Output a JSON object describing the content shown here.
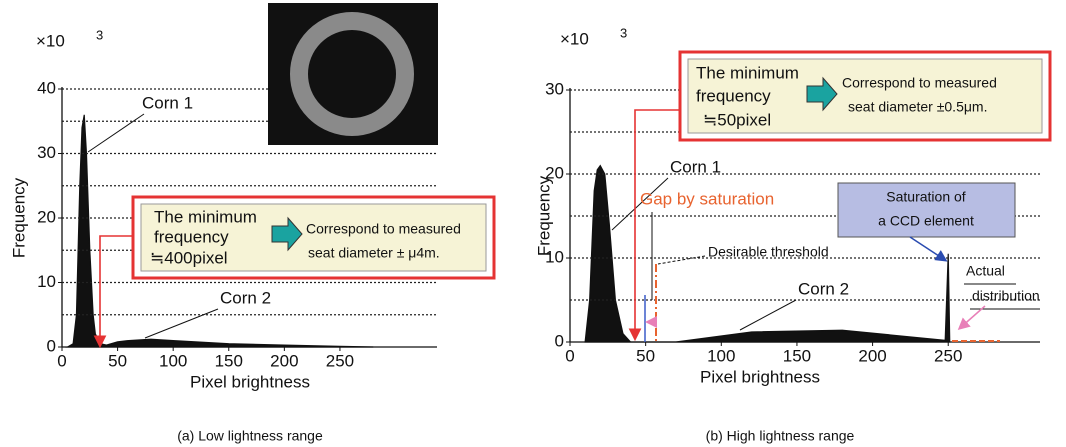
{
  "chart_data": [
    {
      "type": "area",
      "caption": "(a) Low lightness range",
      "y_unit": "×10",
      "y_unit_exp": "3",
      "x_label": "Pixel brightness",
      "y_label": "Frequency",
      "color": "#111111",
      "x": [
        5,
        10,
        13,
        16,
        18,
        20,
        22,
        25,
        28,
        30,
        35,
        40,
        50,
        60,
        80,
        100,
        150,
        200,
        250,
        280
      ],
      "values": [
        0,
        0.5,
        5,
        25,
        34,
        36,
        30,
        15,
        5,
        2,
        0.5,
        0.3,
        0.8,
        1,
        1.2,
        1,
        0.5,
        0.3,
        0.1,
        0
      ],
      "xlim": [
        0,
        340
      ],
      "ylim": [
        0,
        40
      ],
      "xticks": [
        0,
        50,
        100,
        150,
        200,
        250
      ],
      "yticks": [
        0,
        10,
        20,
        30,
        40
      ],
      "grid_lines": [
        5,
        10,
        15,
        20,
        25,
        30,
        35,
        40
      ],
      "annotations": {
        "corn1": "Corn 1",
        "corn2": "Corn 2"
      },
      "callout": {
        "left": [
          "The minimum",
          "frequency",
          "≒400pixel"
        ],
        "right": [
          "Correspond to measured",
          "seat diameter ± μ4m."
        ]
      }
    },
    {
      "type": "area",
      "caption": "(b) High lightness range",
      "y_unit": "×10",
      "y_unit_exp": "3",
      "x_label": "Pixel brightness",
      "y_label": "Frequency",
      "color": "#111111",
      "x": [
        10,
        13,
        16,
        18,
        20,
        23,
        26,
        30,
        35,
        40,
        70,
        120,
        180,
        248,
        250,
        251
      ],
      "values": [
        0,
        5,
        18,
        20.5,
        21,
        20,
        14,
        5,
        1,
        0,
        0,
        1.2,
        1.4,
        0.2,
        10.5,
        0
      ],
      "xlim": [
        0,
        310
      ],
      "ylim": [
        0,
        30
      ],
      "xticks": [
        0,
        50,
        100,
        150,
        200,
        250
      ],
      "yticks": [
        0,
        10,
        20,
        30
      ],
      "grid_lines": [
        5,
        10,
        15,
        20,
        25,
        30
      ],
      "annotations": {
        "corn1": "Corn 1",
        "corn2": "Corn 2",
        "gap": "Gap by saturation",
        "threshold": "Desirable threshold",
        "saturation": [
          "Saturation of",
          "a CCD element"
        ],
        "actual": [
          "Actual",
          "distribution"
        ]
      },
      "callout": {
        "left": [
          "The minimum",
          "frequency",
          "≒50pixel"
        ],
        "right": [
          "Correspond to measured",
          "seat diameter ±0.5μm."
        ]
      }
    }
  ]
}
